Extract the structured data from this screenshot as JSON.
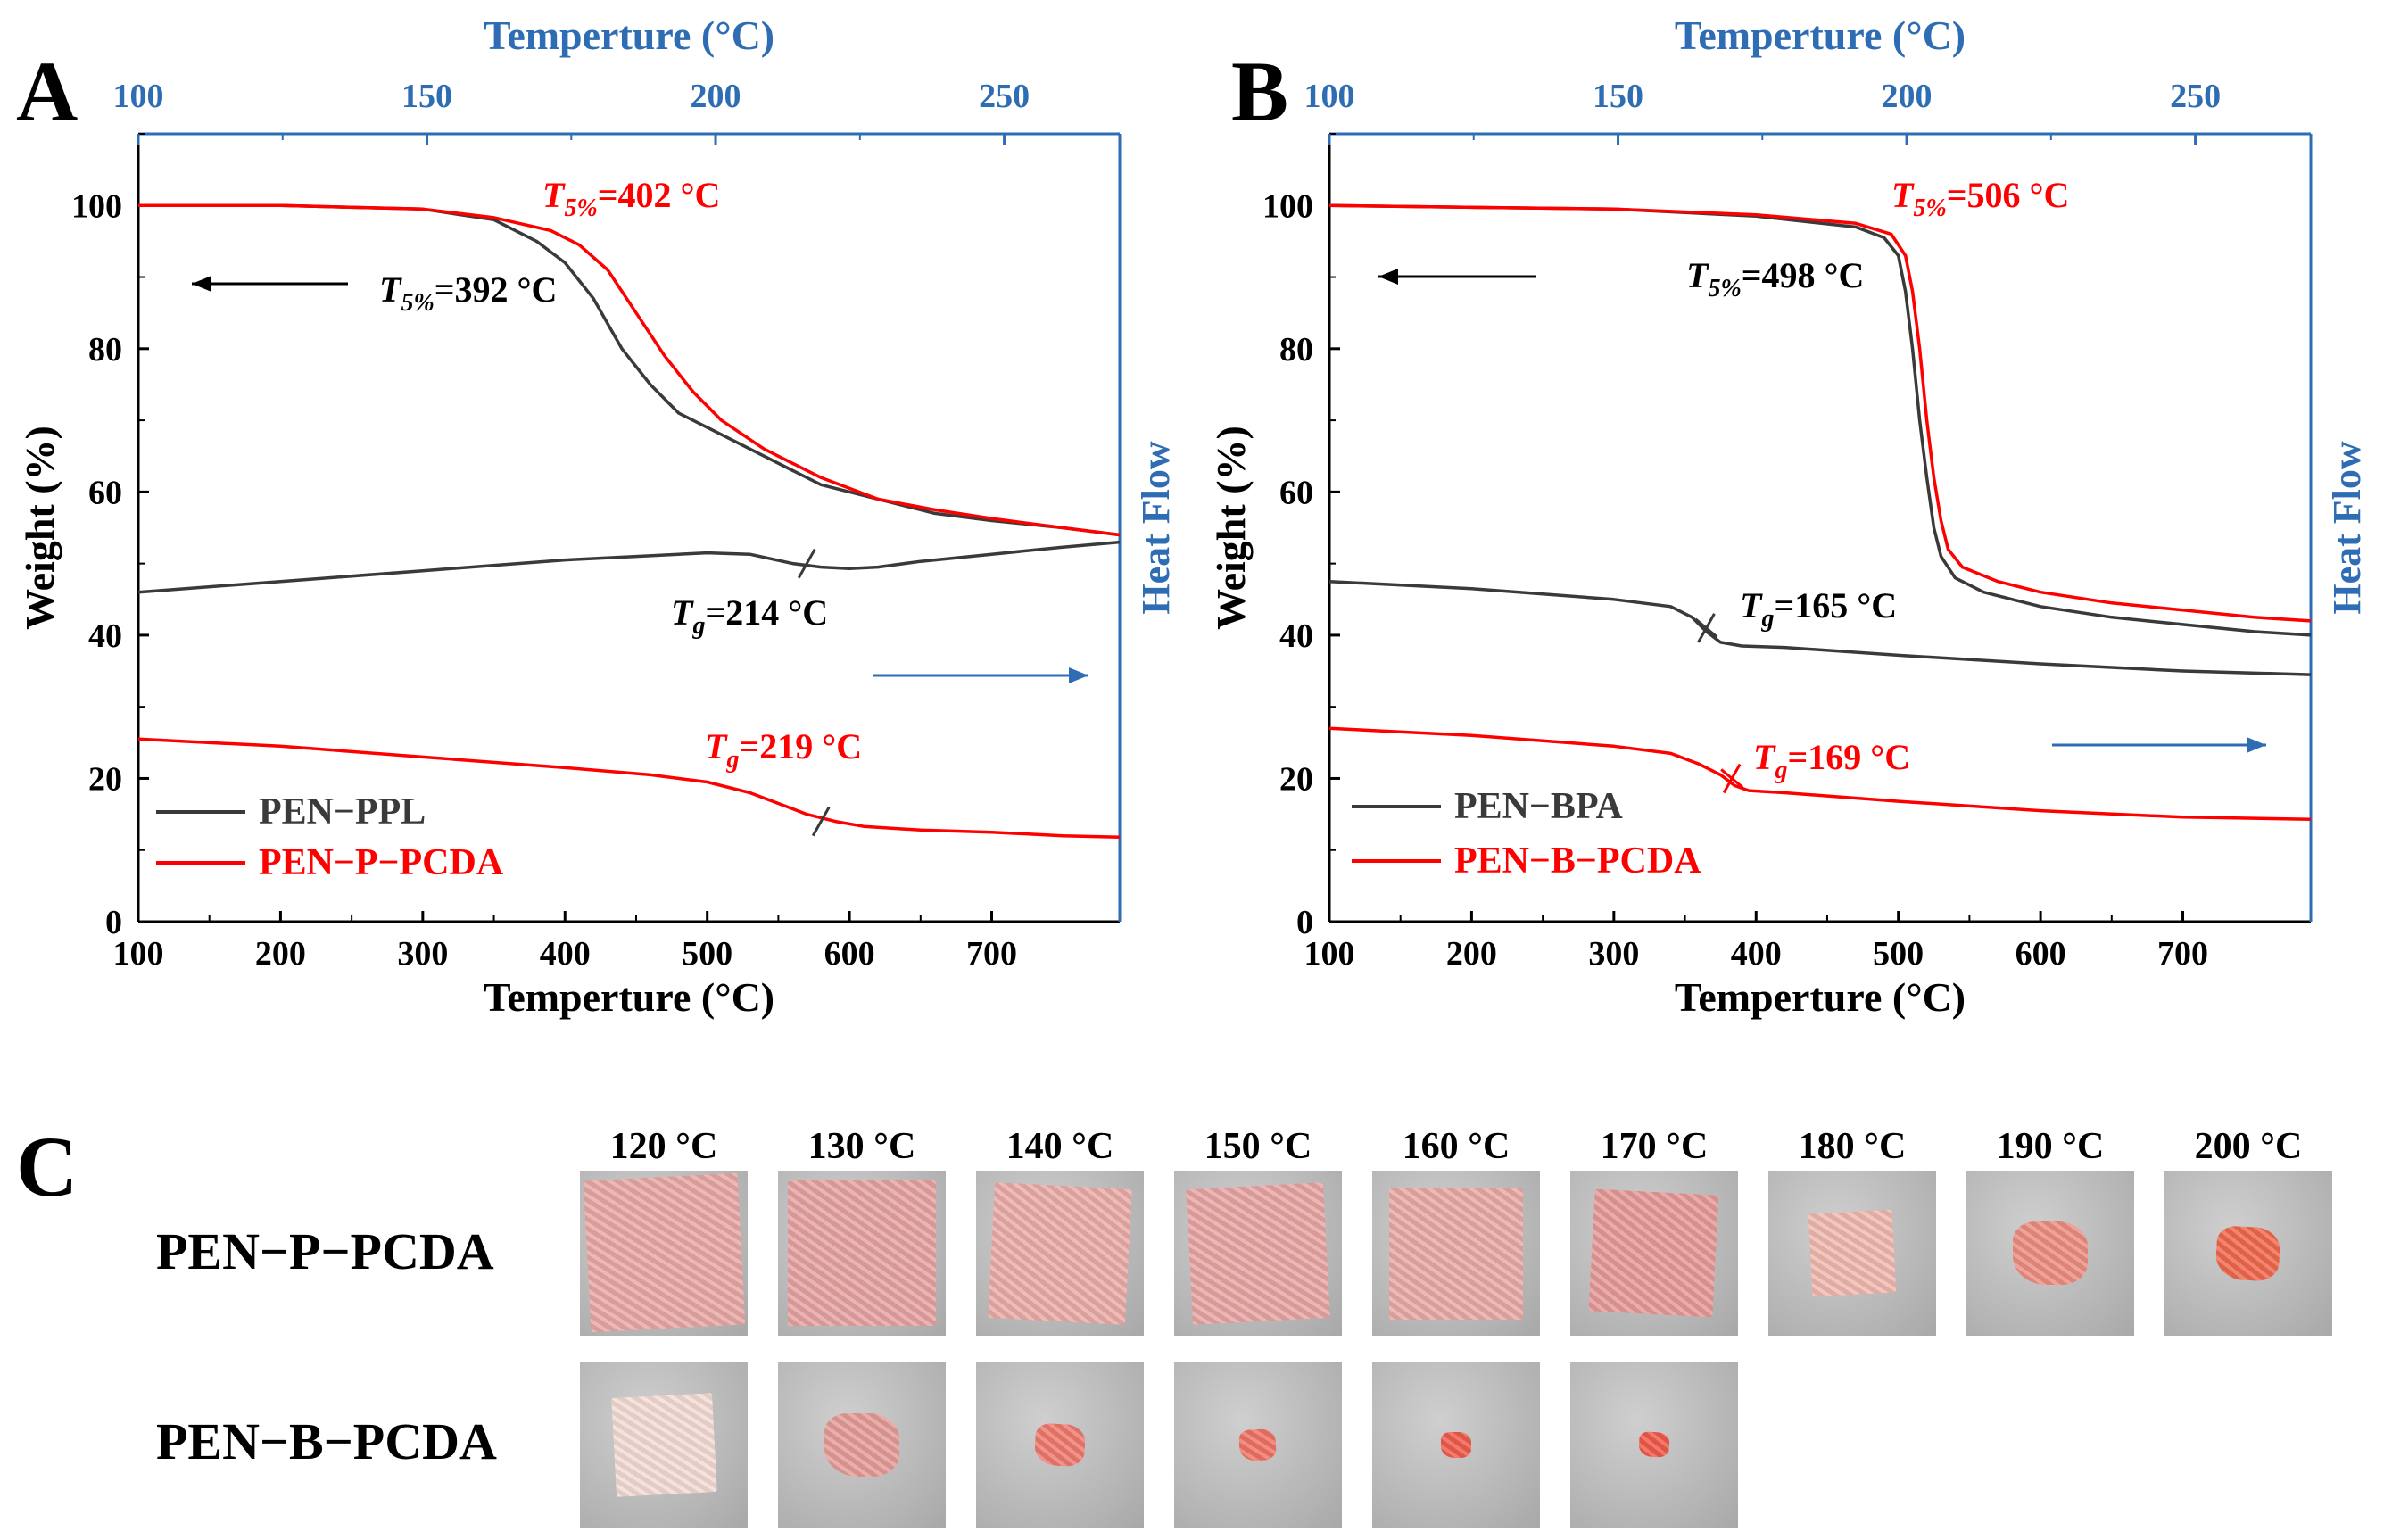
{
  "colors": {
    "pen_pplish": "#3a3a3a",
    "red": "#ff0000",
    "blue": "#2e6db4",
    "black": "#000000"
  },
  "chart_data": [
    {
      "id": "A",
      "type": "line",
      "panel_label": "A",
      "xlabel": "Temperture (°C)",
      "ylabel": "Weight  (%)",
      "top_xlabel": "Temperture (°C)",
      "right_ylabel": "Heat Flow",
      "xlim": [
        100,
        790
      ],
      "ylim": [
        0,
        110
      ],
      "xticks": [
        100,
        200,
        300,
        400,
        500,
        600,
        700
      ],
      "yticks": [
        0,
        20,
        40,
        60,
        80,
        100
      ],
      "top_xlim": [
        100,
        270
      ],
      "top_xticks": [
        100,
        150,
        200,
        250
      ],
      "series": [
        {
          "name": "PEN−PPL",
          "kind": "tga",
          "color": "#3a3a3a",
          "x": [
            100,
            200,
            300,
            350,
            380,
            400,
            420,
            440,
            460,
            480,
            500,
            540,
            580,
            620,
            660,
            700,
            750,
            790
          ],
          "y": [
            100,
            100,
            99.5,
            98,
            95,
            92,
            87,
            80,
            75,
            71,
            69,
            65,
            61,
            59,
            57,
            56,
            55,
            54
          ]
        },
        {
          "name": "PEN−P−PCDA",
          "kind": "tga",
          "color": "#ff0000",
          "x": [
            100,
            200,
            300,
            350,
            390,
            410,
            430,
            450,
            470,
            490,
            510,
            540,
            580,
            620,
            660,
            700,
            750,
            790
          ],
          "y": [
            100,
            100,
            99.5,
            98.3,
            96.5,
            94.5,
            91,
            85,
            79,
            74,
            70,
            66,
            62,
            59,
            57.5,
            56.3,
            55,
            54
          ]
        },
        {
          "name": "PEN−PPL DSC",
          "kind": "dsc",
          "color": "#3a3a3a",
          "x": [
            100,
            200,
            300,
            400,
            450,
            500,
            530,
            560,
            580,
            600,
            620,
            650,
            700,
            750,
            790
          ],
          "y": [
            46,
            47.5,
            49,
            50.5,
            51,
            51.5,
            51.3,
            50,
            49.5,
            49.3,
            49.5,
            50.3,
            51.3,
            52.3,
            53
          ]
        },
        {
          "name": "PEN−P−PCDA DSC",
          "kind": "dsc",
          "color": "#ff0000",
          "x": [
            100,
            200,
            300,
            400,
            460,
            500,
            530,
            550,
            570,
            590,
            610,
            650,
            700,
            750,
            790
          ],
          "y": [
            25.5,
            24.5,
            23,
            21.5,
            20.5,
            19.5,
            18,
            16.5,
            15,
            14,
            13.3,
            12.8,
            12.5,
            12,
            11.8
          ]
        }
      ],
      "legend": [
        {
          "label": "PEN−PPL",
          "color": "#3a3a3a"
        },
        {
          "label": "PEN−P−PCDA",
          "color": "#ff0000"
        }
      ],
      "annotations": {
        "t5_red": {
          "sym": "T",
          "sub": "5%",
          "rest": "=402 °C",
          "color": "#ff0000"
        },
        "t5_black": {
          "sym": "T",
          "sub": "5%",
          "rest": "=392 °C",
          "color": "#000000"
        },
        "tg_black": {
          "sym": "T",
          "sub": "g",
          "rest": "=214 °C",
          "color": "#000000"
        },
        "tg_red": {
          "sym": "T",
          "sub": "g",
          "rest": "=219 °C",
          "color": "#ff0000"
        }
      },
      "tick_marks": [
        {
          "x": 570,
          "y": 50,
          "color": "#3a3a3a"
        },
        {
          "x": 580,
          "y": 14,
          "color": "#3a3a3a"
        }
      ]
    },
    {
      "id": "B",
      "type": "line",
      "panel_label": "B",
      "xlabel": "Temperture (°C)",
      "ylabel": "Weight  (%)",
      "top_xlabel": "Temperture (°C)",
      "right_ylabel": "Heat Flow",
      "xlim": [
        100,
        790
      ],
      "ylim": [
        0,
        110
      ],
      "xticks": [
        100,
        200,
        300,
        400,
        500,
        600,
        700
      ],
      "yticks": [
        0,
        20,
        40,
        60,
        80,
        100
      ],
      "top_xlim": [
        100,
        270
      ],
      "top_xticks": [
        100,
        150,
        200,
        250
      ],
      "series": [
        {
          "name": "PEN−BPA",
          "kind": "tga",
          "color": "#3a3a3a",
          "x": [
            100,
            300,
            400,
            470,
            490,
            500,
            505,
            510,
            515,
            520,
            525,
            530,
            540,
            560,
            600,
            650,
            700,
            750,
            790
          ],
          "y": [
            100,
            99.5,
            98.5,
            97,
            95.5,
            93,
            88,
            80,
            70,
            62,
            55,
            51,
            48,
            46,
            44,
            42.5,
            41.5,
            40.5,
            40
          ]
        },
        {
          "name": "PEN−B−PCDA",
          "kind": "tga",
          "color": "#ff0000",
          "x": [
            100,
            300,
            400,
            470,
            495,
            505,
            510,
            515,
            520,
            525,
            530,
            535,
            545,
            570,
            600,
            650,
            700,
            750,
            790
          ],
          "y": [
            100,
            99.5,
            98.7,
            97.5,
            96,
            93,
            88,
            80,
            70,
            62,
            56,
            52,
            49.5,
            47.5,
            46,
            44.5,
            43.5,
            42.5,
            42
          ]
        },
        {
          "name": "PEN−BPA DSC",
          "kind": "dsc",
          "color": "#3a3a3a",
          "x": [
            100,
            200,
            300,
            340,
            355,
            365,
            375,
            390,
            420,
            500,
            600,
            700,
            790
          ],
          "y": [
            47.5,
            46.5,
            45,
            44,
            42.5,
            40.5,
            39,
            38.5,
            38.3,
            37.2,
            36,
            35,
            34.5
          ]
        },
        {
          "name": "PEN−B−PCDA DSC",
          "kind": "dsc",
          "color": "#ff0000",
          "x": [
            100,
            200,
            300,
            340,
            360,
            375,
            385,
            395,
            420,
            500,
            600,
            700,
            790
          ],
          "y": [
            27,
            26,
            24.5,
            23.5,
            22,
            20.5,
            19,
            18.3,
            18,
            16.8,
            15.5,
            14.6,
            14.3
          ]
        }
      ],
      "legend": [
        {
          "label": "PEN−BPA",
          "color": "#3a3a3a"
        },
        {
          "label": "PEN−B−PCDA",
          "color": "#ff0000"
        }
      ],
      "annotations": {
        "t5_red": {
          "sym": "T",
          "sub": "5%",
          "rest": "=506 °C",
          "color": "#ff0000"
        },
        "t5_black": {
          "sym": "T",
          "sub": "5%",
          "rest": "=498 °C",
          "color": "#000000"
        },
        "tg_black": {
          "sym": "T",
          "sub": "g",
          "rest": "=165 °C",
          "color": "#000000"
        },
        "tg_red": {
          "sym": "T",
          "sub": "g",
          "rest": "=169 °C",
          "color": "#ff0000"
        }
      },
      "tick_marks": [
        {
          "x": 365,
          "y": 41,
          "color": "#3a3a3a",
          "cross": true
        },
        {
          "x": 383,
          "y": 20,
          "color": "#ff0000",
          "cross": true
        }
      ]
    }
  ],
  "panel_c": {
    "label": "C",
    "temperatures": [
      "120 °C",
      "130 °C",
      "140 °C",
      "150 °C",
      "160 °C",
      "170 °C",
      "180 °C",
      "190 °C",
      "200 °C"
    ],
    "rows": [
      {
        "name": "PEN−P−PCDA",
        "samples": [
          {
            "size": 0.92,
            "color": "#e8a8a6"
          },
          {
            "size": 0.88,
            "color": "#e6a3a1"
          },
          {
            "size": 0.82,
            "color": "#eaaca8"
          },
          {
            "size": 0.82,
            "color": "#e7a6a3"
          },
          {
            "size": 0.8,
            "color": "#e8aaa6"
          },
          {
            "size": 0.74,
            "color": "#e59a98"
          },
          {
            "size": 0.5,
            "color": "#f0b9b0"
          },
          {
            "size": 0.45,
            "color": "#ec8e80"
          },
          {
            "size": 0.38,
            "color": "#f0694e"
          }
        ]
      },
      {
        "name": "PEN−B−PCDA",
        "samples": [
          {
            "size": 0.6,
            "color": "#f3dcd4"
          },
          {
            "size": 0.45,
            "color": "#e59c98"
          },
          {
            "size": 0.3,
            "color": "#ef7a6e"
          },
          {
            "size": 0.22,
            "color": "#f07365"
          },
          {
            "size": 0.18,
            "color": "#f05c4c"
          },
          {
            "size": 0.18,
            "color": "#f05a4a"
          }
        ]
      }
    ]
  }
}
